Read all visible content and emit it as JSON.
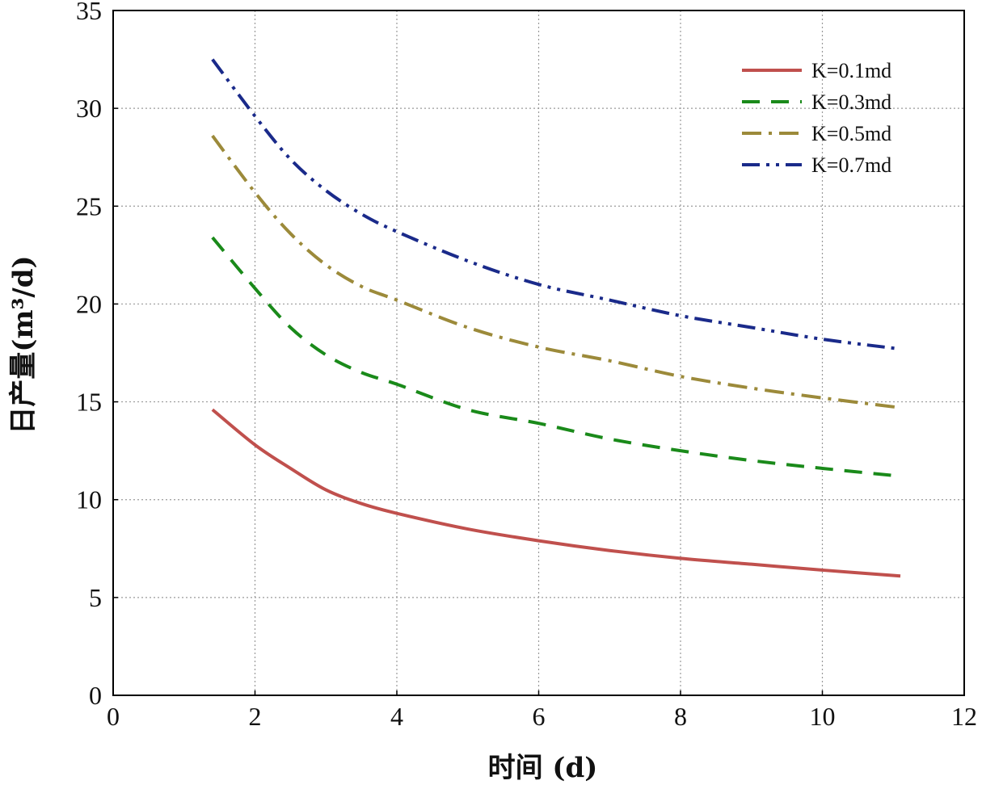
{
  "chart_data": {
    "type": "line",
    "title": "",
    "xlabel": "时间  (d)",
    "ylabel": "日产量(m³/d)",
    "xlim": [
      0,
      12
    ],
    "ylim": [
      0,
      35
    ],
    "x_ticks": [
      0,
      2,
      4,
      6,
      8,
      10,
      12
    ],
    "y_ticks": [
      0,
      5,
      10,
      15,
      20,
      25,
      30,
      35
    ],
    "grid": true,
    "legend_position": "top-right",
    "x": [
      1.4,
      2,
      2.5,
      3,
      3.5,
      4,
      5,
      6,
      7,
      8,
      9,
      10,
      11.1
    ],
    "series": [
      {
        "name": "K=0.1md",
        "color": "#c0504d",
        "dash": "solid",
        "values": [
          14.6,
          12.8,
          11.6,
          10.5,
          9.8,
          9.3,
          8.5,
          7.9,
          7.4,
          7.0,
          6.7,
          6.4,
          6.1
        ]
      },
      {
        "name": "K=0.3md",
        "color": "#1a8a1a",
        "dash": "dashed",
        "values": [
          23.4,
          20.8,
          18.8,
          17.4,
          16.5,
          15.9,
          14.6,
          13.9,
          13.1,
          12.5,
          12.0,
          11.6,
          11.2
        ]
      },
      {
        "name": "K=0.5md",
        "color": "#9c8a3a",
        "dash": "dashdot",
        "values": [
          28.6,
          25.7,
          23.6,
          22.0,
          20.9,
          20.2,
          18.8,
          17.8,
          17.1,
          16.3,
          15.7,
          15.2,
          14.7
        ]
      },
      {
        "name": "K=0.7md",
        "color": "#1a2a8a",
        "dash": "dashdotdot",
        "values": [
          32.5,
          29.6,
          27.4,
          25.8,
          24.6,
          23.7,
          22.2,
          21.0,
          20.2,
          19.4,
          18.8,
          18.2,
          17.7
        ]
      }
    ]
  }
}
